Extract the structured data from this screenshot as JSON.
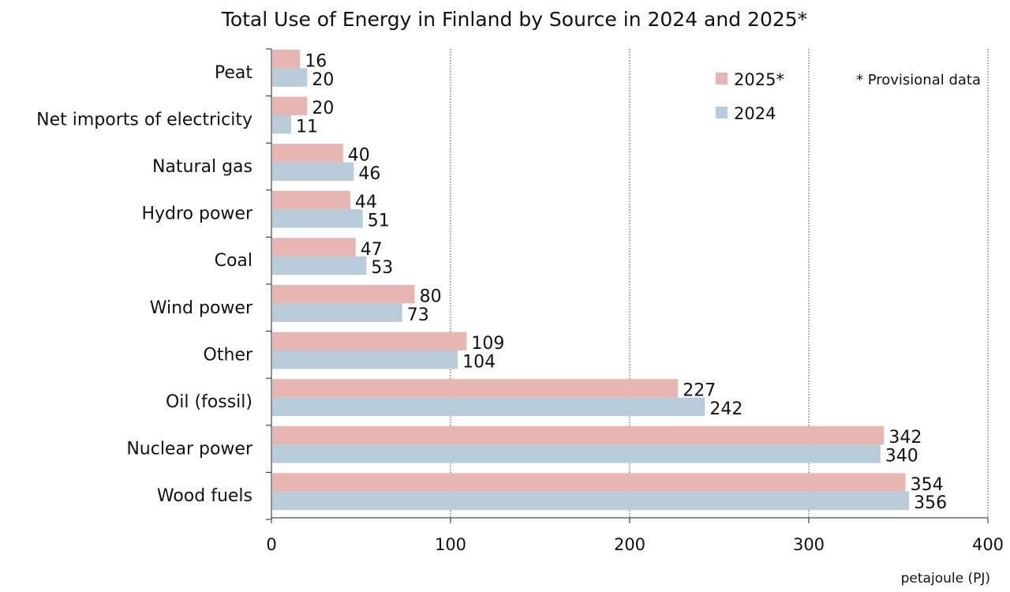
{
  "chart_data": {
    "type": "bar",
    "orientation": "horizontal",
    "title": "Total Use of Energy in Finland by Source in 2024 and 2025*",
    "xlabel": "petajoule (PJ)",
    "ylabel": "",
    "xlim": [
      0,
      400
    ],
    "xticks": [
      "0",
      "100",
      "200",
      "300",
      "400"
    ],
    "grid": "vertical dotted",
    "categories": [
      "Peat",
      "Net imports of electricity",
      "Natural gas",
      "Hydro power",
      "Coal",
      "Wind power",
      "Other",
      "Oil (fossil)",
      "Nuclear power",
      "Wood fuels"
    ],
    "series": [
      {
        "name": "2025*",
        "color": "#e8b6b2",
        "values": [
          16,
          20,
          40,
          44,
          47,
          80,
          109,
          227,
          342,
          354
        ]
      },
      {
        "name": "2024",
        "color": "#b7cbd8",
        "values": [
          20,
          11,
          46,
          51,
          53,
          73,
          104,
          242,
          340,
          356
        ]
      }
    ],
    "legend_position": "top-right",
    "note": "* Provisional data"
  }
}
